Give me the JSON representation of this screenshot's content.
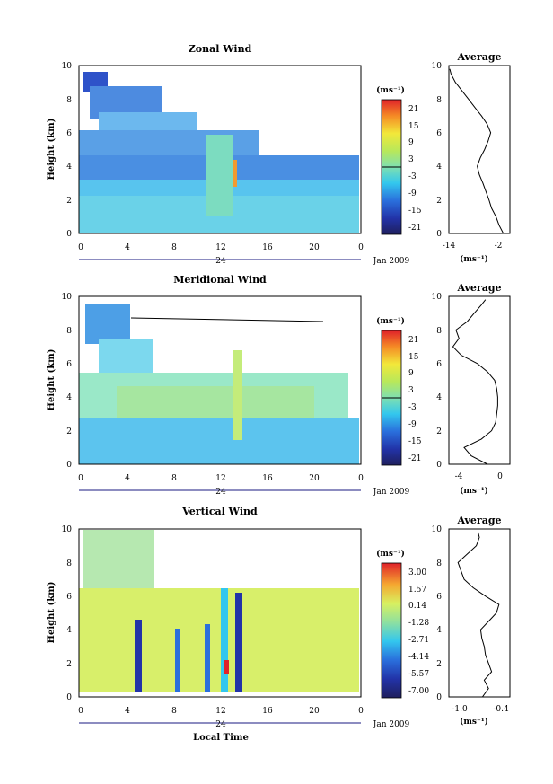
{
  "figure": {
    "xlabel": "Local Time",
    "date_label": "Jan 2009",
    "day_label": "24",
    "unit_label": "(ms⁻¹)",
    "avg_title": "Average",
    "height_label": "Height (km)"
  },
  "chart_data": [
    {
      "type": "heatmap",
      "title": "Zonal Wind",
      "xlabel": "",
      "ylabel": "Height (km)",
      "xlim": [
        0,
        24
      ],
      "ylim": [
        0,
        10
      ],
      "xticks": [
        "0",
        "4",
        "8",
        "12",
        "16",
        "20",
        "0"
      ],
      "yticks": [
        "0",
        "2",
        "4",
        "6",
        "8",
        "10"
      ],
      "colorbar": {
        "label": "(ms⁻¹)",
        "range": [
          -24,
          24
        ],
        "ticks": [
          "21",
          "15",
          "9",
          "3",
          "-3",
          "-9",
          "-15",
          "-21"
        ]
      },
      "average_profile": {
        "title": "Average",
        "xlabel": "(ms⁻¹)",
        "xlim": [
          -14,
          0
        ],
        "xticks": [
          "-14",
          "-2"
        ],
        "heights": [
          0,
          0.5,
          1,
          1.5,
          2,
          2.5,
          3,
          3.5,
          4,
          4.5,
          5,
          5.5,
          6,
          6.5,
          7,
          7.5,
          8,
          8.5,
          9,
          9.5,
          9.8
        ],
        "values": [
          -1.5,
          -2.5,
          -3.2,
          -4.2,
          -4.8,
          -5.5,
          -6.2,
          -7.0,
          -7.5,
          -6.8,
          -5.8,
          -5.0,
          -4.4,
          -5.2,
          -6.5,
          -8.0,
          -9.5,
          -11.0,
          -12.5,
          -13.5,
          -13.8
        ]
      }
    },
    {
      "type": "heatmap",
      "title": "Meridional Wind",
      "xlabel": "",
      "ylabel": "Height (km)",
      "xlim": [
        0,
        24
      ],
      "ylim": [
        0,
        10
      ],
      "xticks": [
        "0",
        "4",
        "8",
        "12",
        "16",
        "20",
        "0"
      ],
      "yticks": [
        "0",
        "2",
        "4",
        "6",
        "8",
        "10"
      ],
      "colorbar": {
        "label": "(ms⁻¹)",
        "range": [
          -24,
          24
        ],
        "ticks": [
          "21",
          "15",
          "9",
          "3",
          "-3",
          "-9",
          "-15",
          "-21"
        ]
      },
      "average_profile": {
        "title": "Average",
        "xlabel": "(ms⁻¹)",
        "xlim": [
          -5,
          1
        ],
        "xticks": [
          "-4",
          "0"
        ],
        "heights": [
          0,
          0.5,
          1,
          1.5,
          2,
          2.5,
          3,
          3.5,
          4,
          4.5,
          5,
          5.5,
          6,
          6.5,
          7,
          7.5,
          8,
          8.5,
          9,
          9.5,
          9.8
        ],
        "values": [
          -1.2,
          -2.8,
          -3.5,
          -1.8,
          -0.8,
          -0.4,
          -0.3,
          -0.2,
          -0.2,
          -0.3,
          -0.5,
          -1.2,
          -2.2,
          -3.8,
          -4.6,
          -4.0,
          -4.3,
          -3.2,
          -2.5,
          -1.8,
          -1.4
        ]
      }
    },
    {
      "type": "heatmap",
      "title": "Vertical Wind",
      "xlabel": "Local Time",
      "ylabel": "Height (km)",
      "xlim": [
        0,
        24
      ],
      "ylim": [
        0,
        10
      ],
      "xticks": [
        "0",
        "4",
        "8",
        "12",
        "16",
        "20",
        "0"
      ],
      "yticks": [
        "0",
        "2",
        "4",
        "6",
        "8",
        "10"
      ],
      "colorbar": {
        "label": "(ms⁻¹)",
        "range": [
          -8.5,
          4.5
        ],
        "ticks": [
          "3.00",
          "1.57",
          "0.14",
          "-1.28",
          "-2.71",
          "-4.14",
          "-5.57",
          "-7.00"
        ]
      },
      "average_profile": {
        "title": "Average",
        "xlabel": "(ms⁻¹)",
        "xlim": [
          -1.2,
          -0.2
        ],
        "xticks": [
          "-1.0",
          "-0.4"
        ],
        "heights": [
          0,
          0.5,
          1,
          1.5,
          2,
          2.5,
          3,
          3.5,
          4,
          4.5,
          5,
          5.5,
          6,
          6.5,
          7,
          7.5,
          8,
          8.5,
          9,
          9.5,
          9.8
        ],
        "values": [
          -0.65,
          -0.55,
          -0.62,
          -0.5,
          -0.55,
          -0.6,
          -0.62,
          -0.66,
          -0.68,
          -0.55,
          -0.42,
          -0.38,
          -0.6,
          -0.8,
          -0.95,
          -1.0,
          -1.05,
          -0.9,
          -0.75,
          -0.7,
          -0.72
        ]
      }
    }
  ]
}
